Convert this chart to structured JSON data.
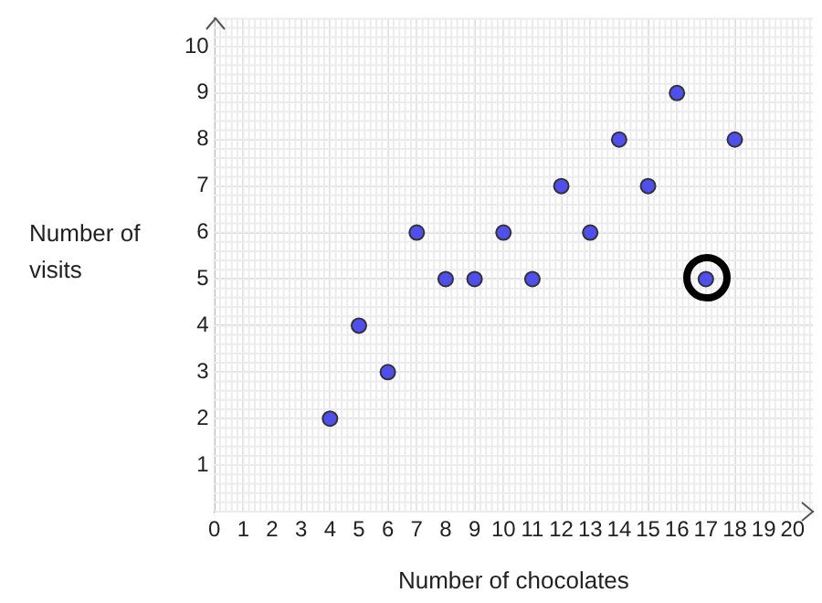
{
  "chart_data": {
    "type": "scatter",
    "xlabel": "Number of chocolates",
    "ylabel": "Number of visits",
    "x": [
      4,
      5,
      6,
      7,
      8,
      9,
      10,
      11,
      12,
      13,
      14,
      15,
      16,
      17,
      18
    ],
    "series": [
      {
        "color": "#4f4ff0",
        "values": [
          2,
          4,
          3,
          6,
          5,
          5,
          6,
          5,
          7,
          6,
          8,
          7,
          9,
          5,
          8
        ]
      }
    ],
    "xlim": [
      0,
      20.7
    ],
    "ylim": [
      0,
      10.6
    ],
    "xticks": [
      0,
      1,
      2,
      3,
      4,
      5,
      6,
      7,
      8,
      9,
      10,
      11,
      12,
      13,
      14,
      15,
      16,
      17,
      18,
      19,
      20
    ],
    "yticks": [
      {
        "value": 0,
        "label": null
      },
      1,
      2,
      3,
      4,
      5,
      6,
      7,
      8,
      9,
      10
    ],
    "grid": true,
    "legend": false,
    "marker": "circle"
  }
}
